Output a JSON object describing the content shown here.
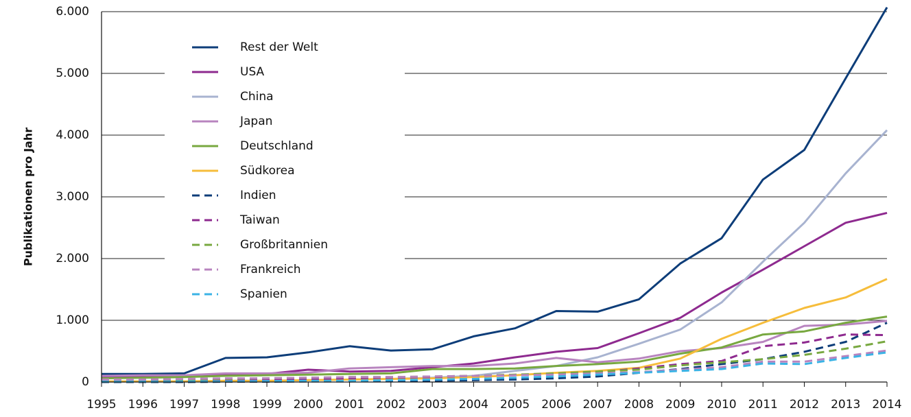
{
  "chart_data": {
    "type": "line",
    "y_label": "Publikationen pro Jahr",
    "x": [
      1995,
      1996,
      1997,
      1998,
      1999,
      2000,
      2001,
      2002,
      2003,
      2004,
      2005,
      2006,
      2007,
      2008,
      2009,
      2010,
      2011,
      2012,
      2013,
      2014
    ],
    "xlim": [
      1995,
      2014
    ],
    "xticks": [
      1995,
      1996,
      1997,
      1998,
      1999,
      2000,
      2001,
      2002,
      2003,
      2004,
      2005,
      2006,
      2007,
      2008,
      2009,
      2010,
      2011,
      2012,
      2013,
      2014
    ],
    "ylim": [
      0,
      6000
    ],
    "yticks": [
      0,
      {
        "value": 1000,
        "label": "1.000"
      },
      {
        "value": 2000,
        "label": "2.000"
      },
      {
        "value": 3000,
        "label": "3.000"
      },
      {
        "value": 4000,
        "label": "4.000"
      },
      {
        "value": 5000,
        "label": "5.000"
      },
      {
        "value": 6000,
        "label": "6.000"
      }
    ],
    "grid": true,
    "legend": "upper left",
    "series": [
      {
        "name": "Rest der Welt",
        "color": "#0d3d79",
        "style": "solid",
        "values": [
          130,
          130,
          140,
          390,
          400,
          480,
          580,
          510,
          530,
          740,
          870,
          1150,
          1140,
          1340,
          1920,
          2330,
          3280,
          3760,
          4920,
          6070
        ]
      },
      {
        "name": "USA",
        "color": "#8e2a8f",
        "style": "solid",
        "values": [
          80,
          90,
          100,
          120,
          130,
          200,
          170,
          180,
          240,
          300,
          400,
          490,
          550,
          790,
          1040,
          1450,
          1820,
          2200,
          2580,
          2740
        ]
      },
      {
        "name": "China",
        "color": "#a8b3d0",
        "style": "solid",
        "values": [
          10,
          10,
          10,
          20,
          20,
          30,
          40,
          50,
          70,
          100,
          180,
          260,
          400,
          620,
          850,
          1290,
          1950,
          2580,
          3380,
          4080
        ]
      },
      {
        "name": "Japan",
        "color": "#b884bf",
        "style": "solid",
        "values": [
          100,
          110,
          110,
          140,
          140,
          150,
          220,
          240,
          260,
          260,
          300,
          390,
          320,
          380,
          500,
          550,
          650,
          910,
          930,
          990
        ]
      },
      {
        "name": "Deutschland",
        "color": "#78a840",
        "style": "solid",
        "values": [
          60,
          70,
          80,
          100,
          110,
          120,
          130,
          140,
          210,
          210,
          220,
          260,
          290,
          330,
          460,
          560,
          770,
          820,
          960,
          1060
        ]
      },
      {
        "name": "Südkorea",
        "color": "#f6bd3b",
        "style": "solid",
        "values": [
          10,
          10,
          10,
          20,
          20,
          30,
          40,
          50,
          60,
          80,
          110,
          150,
          180,
          230,
          380,
          700,
          960,
          1200,
          1370,
          1670
        ]
      },
      {
        "name": "Indien",
        "color": "#0d3d79",
        "style": "dashed",
        "values": [
          0,
          0,
          0,
          5,
          5,
          10,
          10,
          15,
          20,
          30,
          40,
          60,
          90,
          150,
          210,
          290,
          370,
          490,
          650,
          960
        ]
      },
      {
        "name": "Taiwan",
        "color": "#8e2a8f",
        "style": "dashed",
        "values": [
          10,
          10,
          20,
          30,
          40,
          50,
          60,
          70,
          80,
          100,
          110,
          130,
          160,
          220,
          290,
          340,
          580,
          640,
          770,
          760
        ]
      },
      {
        "name": "Großbritannien",
        "color": "#78a840",
        "style": "dashed",
        "values": [
          30,
          40,
          40,
          50,
          60,
          70,
          80,
          80,
          90,
          100,
          120,
          140,
          170,
          200,
          270,
          320,
          370,
          440,
          540,
          660
        ]
      },
      {
        "name": "Frankreich",
        "color": "#b884bf",
        "style": "dashed",
        "values": [
          40,
          40,
          50,
          60,
          60,
          70,
          80,
          80,
          90,
          100,
          110,
          120,
          140,
          160,
          200,
          240,
          330,
          330,
          420,
          510
        ]
      },
      {
        "name": "Spanien",
        "color": "#3bb3e5",
        "style": "dashed",
        "values": [
          5,
          5,
          10,
          10,
          15,
          20,
          20,
          30,
          40,
          50,
          70,
          90,
          120,
          150,
          180,
          210,
          300,
          290,
          390,
          480
        ]
      }
    ]
  }
}
